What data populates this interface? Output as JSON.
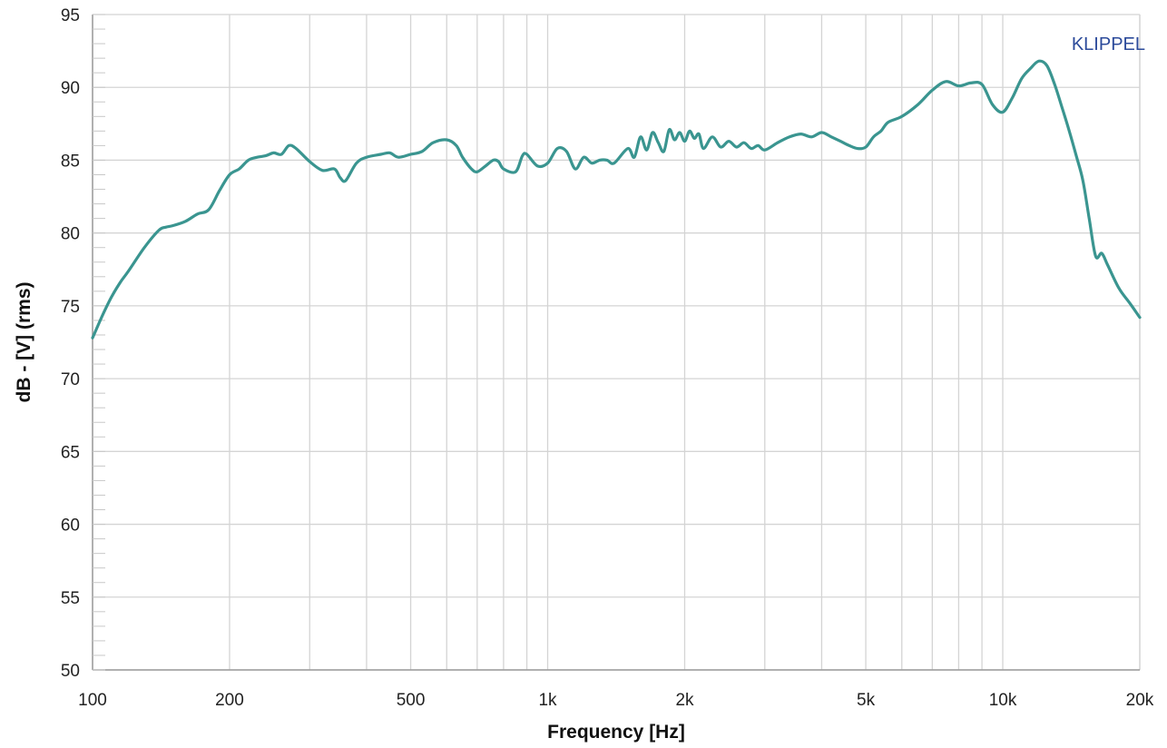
{
  "chart_data": {
    "type": "line",
    "title": "",
    "brand_label": "KLIPPEL",
    "xlabel": "Frequency [Hz]",
    "ylabel": "dB - [V] (rms)",
    "x_scale": "log",
    "xlim": [
      100,
      20000
    ],
    "ylim": [
      50,
      95
    ],
    "grid": true,
    "legend": "none",
    "line_color": "#3a9590",
    "x_ticks": [
      {
        "value": 100,
        "label": "100"
      },
      {
        "value": 200,
        "label": "200"
      },
      {
        "value": 500,
        "label": "500"
      },
      {
        "value": 1000,
        "label": "1k"
      },
      {
        "value": 2000,
        "label": "2k"
      },
      {
        "value": 5000,
        "label": "5k"
      },
      {
        "value": 10000,
        "label": "10k"
      },
      {
        "value": 20000,
        "label": "20k"
      }
    ],
    "y_ticks": [
      {
        "value": 50,
        "label": "50"
      },
      {
        "value": 55,
        "label": "55"
      },
      {
        "value": 60,
        "label": "60"
      },
      {
        "value": 65,
        "label": "65"
      },
      {
        "value": 70,
        "label": "70"
      },
      {
        "value": 75,
        "label": "75"
      },
      {
        "value": 80,
        "label": "80"
      },
      {
        "value": 85,
        "label": "85"
      },
      {
        "value": 90,
        "label": "90"
      },
      {
        "value": 95,
        "label": "95"
      }
    ],
    "series": [
      {
        "x": [
          100,
          105,
          110,
          115,
          120,
          130,
          140,
          145,
          150,
          160,
          170,
          180,
          190,
          200,
          210,
          220,
          230,
          240,
          250,
          260,
          270,
          280,
          300,
          320,
          340,
          350,
          360,
          380,
          400,
          430,
          450,
          470,
          500,
          530,
          560,
          600,
          630,
          650,
          680,
          700,
          730,
          760,
          780,
          800,
          850,
          880,
          900,
          950,
          1000,
          1050,
          1100,
          1150,
          1200,
          1250,
          1300,
          1350,
          1400,
          1500,
          1550,
          1600,
          1650,
          1700,
          1750,
          1800,
          1850,
          1900,
          1950,
          2000,
          2050,
          2100,
          2150,
          2200,
          2300,
          2400,
          2500,
          2600,
          2700,
          2800,
          2900,
          3000,
          3200,
          3400,
          3600,
          3800,
          4000,
          4200,
          4400,
          4600,
          4800,
          5000,
          5200,
          5400,
          5600,
          6000,
          6500,
          7000,
          7500,
          8000,
          8500,
          9000,
          9500,
          10000,
          10500,
          11000,
          11500,
          12000,
          12500,
          13000,
          13500,
          14000,
          14500,
          15000,
          15500,
          16000,
          16500,
          17000,
          18000,
          19000,
          20000
        ],
        "y": [
          72.8,
          74.3,
          75.6,
          76.6,
          77.4,
          79.0,
          80.2,
          80.4,
          80.5,
          80.8,
          81.3,
          81.6,
          82.9,
          84.0,
          84.4,
          85.0,
          85.2,
          85.3,
          85.5,
          85.4,
          86.0,
          85.8,
          84.9,
          84.3,
          84.4,
          83.8,
          83.6,
          84.8,
          85.2,
          85.4,
          85.5,
          85.2,
          85.4,
          85.6,
          86.2,
          86.4,
          86.0,
          85.2,
          84.4,
          84.2,
          84.6,
          85.0,
          84.9,
          84.4,
          84.2,
          85.3,
          85.4,
          84.6,
          84.8,
          85.8,
          85.6,
          84.4,
          85.2,
          84.8,
          85.0,
          85.0,
          84.8,
          85.8,
          85.2,
          86.6,
          85.7,
          86.9,
          86.2,
          85.6,
          87.1,
          86.4,
          86.9,
          86.3,
          87.0,
          86.5,
          86.8,
          85.8,
          86.6,
          85.9,
          86.3,
          85.9,
          86.2,
          85.8,
          86.0,
          85.7,
          86.2,
          86.6,
          86.8,
          86.6,
          86.9,
          86.6,
          86.3,
          86.0,
          85.8,
          85.9,
          86.6,
          87.0,
          87.6,
          88.0,
          88.8,
          89.8,
          90.4,
          90.1,
          90.3,
          90.2,
          88.8,
          88.3,
          89.3,
          90.6,
          91.3,
          91.8,
          91.5,
          90.2,
          88.6,
          87.0,
          85.3,
          83.6,
          80.9,
          78.4,
          78.6,
          77.8,
          76.2,
          75.2,
          74.2
        ]
      }
    ]
  }
}
